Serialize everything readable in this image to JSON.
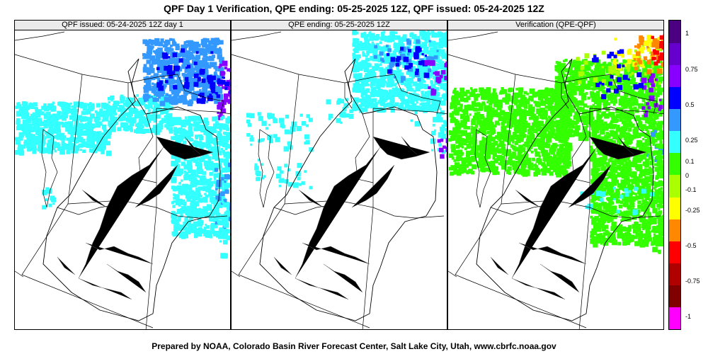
{
  "title": "QPF Day 1 Verification, QPE ending: 05-25-2025 12Z, QPF issued: 05-24-2025 12Z",
  "footer": "Prepared by NOAA, Colorado Basin River Forecast Center, Salt Lake City, Utah, www.cbrfc.noaa.gov",
  "panels": [
    {
      "label": "QPF issued: 05-24-2025 12Z day 1",
      "product": "qpf"
    },
    {
      "label": "QPE ending: 05-25-2025 12Z",
      "product": "qpe"
    },
    {
      "label": "Verification (QPE-QPF)",
      "product": "diff"
    }
  ],
  "legend": {
    "labels": [
      "1",
      "0.75",
      "0.5",
      "0.25",
      "0.1",
      "0",
      "-0.1",
      "-0.25",
      "-0.5",
      "-0.75",
      "-1"
    ],
    "colors": [
      "#ff00ff",
      "#800000",
      "#b00000",
      "#ff0000",
      "#ff8800",
      "#ffff00",
      "#aaff00",
      "#33ff00",
      "#33ffff",
      "#3399ff",
      "#0000ff",
      "#8800ff",
      "#6600cc",
      "#4b0082"
    ],
    "value_colors": {
      "cyan": "#33ffff",
      "lightblue": "#3399ff",
      "blue": "#0000ff",
      "purple": "#8800ff",
      "green": "#33ff00",
      "lime": "#aaff00",
      "yellow": "#ffff00",
      "orange": "#ff8800",
      "red": "#ff0000"
    }
  }
}
